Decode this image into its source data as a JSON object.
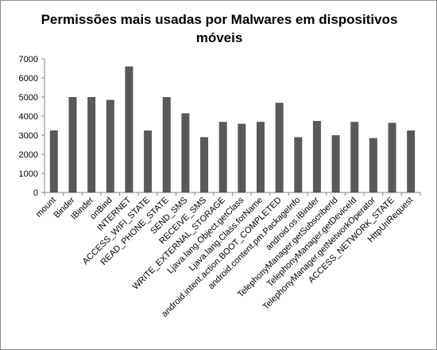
{
  "chart_data": {
    "type": "bar",
    "title": "Permissões mais usadas por Malwares em dispositivos móveis",
    "xlabel": "",
    "ylabel": "",
    "ylim": [
      0,
      7000
    ],
    "yticks": [
      0,
      1000,
      2000,
      3000,
      4000,
      5000,
      6000,
      7000
    ],
    "grid": false,
    "legend": "none",
    "bar_color": "#595959",
    "categories": [
      "mount",
      "Binder",
      "IBinder",
      "onBind",
      "INTERNET",
      "ACCESS_WIFI_STATE",
      "READ_PHONE_STATE",
      "SEND_SMS",
      "RECEIVE_SMS",
      "WRITE_EXTERNAL_STORAGE",
      "Ljava.lang.Object.getClass",
      "Ljava.lang.Class.forName",
      "android.intent.action.BOOT_COMPLETED",
      "android.content.pm.PackageInfo",
      "android.os.IBinder",
      "TelephonyManager.getSubscriberId",
      "TelephonyManager.getDeviceId",
      "TelephonyManager.getNetworkOperator",
      "ACCESS_NETWORK_STATE",
      "HttpUriRequest"
    ],
    "values": [
      3250,
      5000,
      5000,
      4850,
      6600,
      3250,
      5000,
      4150,
      2900,
      3700,
      3600,
      3700,
      4700,
      2900,
      3750,
      3000,
      3700,
      2850,
      3650,
      3250
    ]
  }
}
